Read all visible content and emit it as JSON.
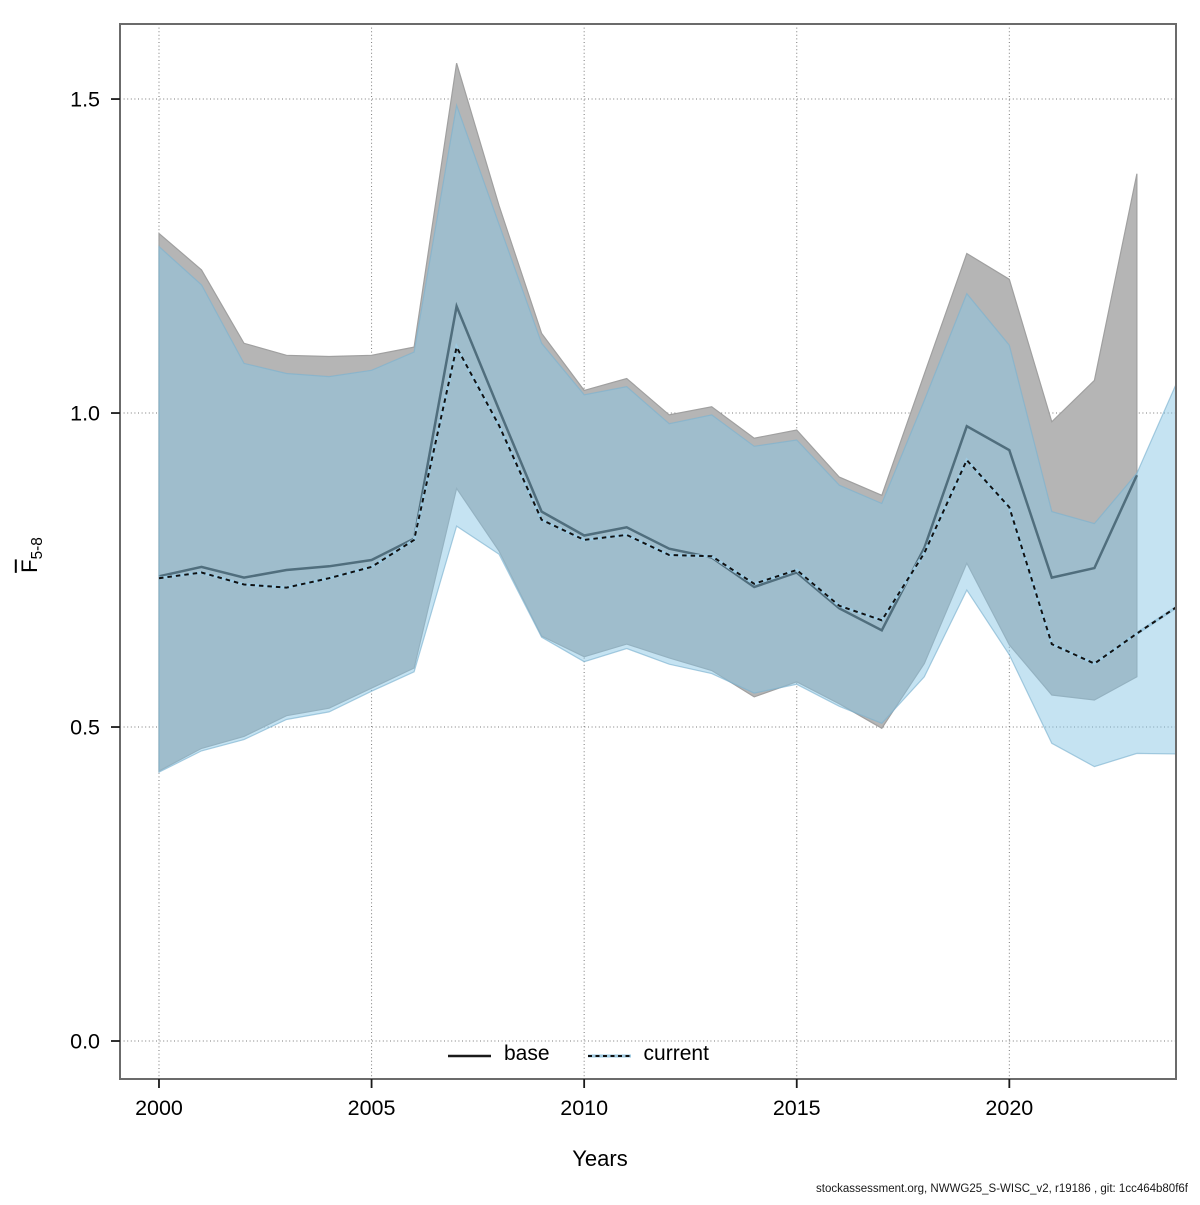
{
  "chart_data": {
    "type": "line",
    "title": "",
    "xlabel": "Years",
    "ylabel_main": "F",
    "ylabel_sub": "5-8",
    "grid": true,
    "legend_position": "bottom-center-inside",
    "x_range": [
      1999.083,
      2023.92
    ],
    "y_range": [
      -0.0605,
      1.6195
    ],
    "x_ticks": [
      [
        2000,
        "2000"
      ],
      [
        2005,
        "2005"
      ],
      [
        2010,
        "2010"
      ],
      [
        2015,
        "2015"
      ],
      [
        2020,
        "2020"
      ]
    ],
    "y_ticks": [
      [
        0,
        "0.0"
      ],
      [
        0.5,
        "0.5"
      ],
      [
        1,
        "1.0"
      ],
      [
        1.5,
        "1.5"
      ]
    ],
    "grid_color": "#7a7a7a",
    "border_color": "#6b6b6b",
    "tick_color": "#1a1a1a",
    "series": [
      {
        "name": "base",
        "style": "solid",
        "line_color": "#1a1a1a",
        "band_color": "#b5b5b5",
        "band_edge_color": "#a0a0a0",
        "years": [
          2000,
          2001,
          2002,
          2003,
          2004,
          2005,
          2006,
          2007,
          2008,
          2009,
          2010,
          2011,
          2012,
          2013,
          2014,
          2015,
          2016,
          2017,
          2018,
          2019,
          2020,
          2021,
          2022,
          2023
        ],
        "values": [
          0.74,
          0.755,
          0.738,
          0.75,
          0.756,
          0.766,
          0.8,
          1.17,
          1.005,
          0.843,
          0.805,
          0.818,
          0.784,
          0.77,
          0.723,
          0.746,
          0.689,
          0.654,
          0.785,
          0.979,
          0.941,
          0.738,
          0.753,
          0.901
        ],
        "hi": [
          1.286,
          1.228,
          1.111,
          1.092,
          1.09,
          1.092,
          1.105,
          1.557,
          1.33,
          1.127,
          1.036,
          1.055,
          0.997,
          1.01,
          0.96,
          0.973,
          0.898,
          0.869,
          1.062,
          1.254,
          1.213,
          0.986,
          1.052,
          1.381
        ],
        "lo": [
          0.43,
          0.466,
          0.485,
          0.518,
          0.53,
          0.562,
          0.594,
          0.88,
          0.78,
          0.645,
          0.612,
          0.632,
          0.61,
          0.59,
          0.548,
          0.572,
          0.537,
          0.498,
          0.601,
          0.761,
          0.631,
          0.551,
          0.543,
          0.58
        ]
      },
      {
        "name": "current",
        "style": "dashed",
        "line_color": "#111111",
        "line_underlay_color": "#9ecae1",
        "band_color": "rgba(136,197,228,0.49)",
        "band_edge_color": "rgba(125,178,208,0.65)",
        "years": [
          2000,
          2001,
          2002,
          2003,
          2004,
          2005,
          2006,
          2007,
          2008,
          2009,
          2010,
          2011,
          2012,
          2013,
          2014,
          2015,
          2016,
          2017,
          2018,
          2019,
          2020,
          2021,
          2022,
          2023,
          2024
        ],
        "values": [
          0.737,
          0.746,
          0.727,
          0.722,
          0.737,
          0.755,
          0.798,
          1.105,
          0.98,
          0.83,
          0.798,
          0.806,
          0.774,
          0.772,
          0.728,
          0.75,
          0.693,
          0.67,
          0.777,
          0.925,
          0.85,
          0.632,
          0.601,
          0.649,
          0.694
        ],
        "hi": [
          1.265,
          1.204,
          1.079,
          1.063,
          1.058,
          1.068,
          1.097,
          1.49,
          1.3,
          1.111,
          1.029,
          1.042,
          0.983,
          0.997,
          0.947,
          0.957,
          0.885,
          0.856,
          1.02,
          1.19,
          1.108,
          0.843,
          0.824,
          0.904,
          1.058
        ],
        "lo": [
          0.428,
          0.462,
          0.48,
          0.512,
          0.524,
          0.557,
          0.588,
          0.82,
          0.775,
          0.643,
          0.604,
          0.625,
          0.6,
          0.585,
          0.554,
          0.568,
          0.533,
          0.506,
          0.58,
          0.718,
          0.615,
          0.474,
          0.437,
          0.458,
          0.457
        ]
      }
    ],
    "footer": "stockassessment.org, NWWG25_S-WISC_v2, r19186 , git: 1cc464b80f6f"
  }
}
